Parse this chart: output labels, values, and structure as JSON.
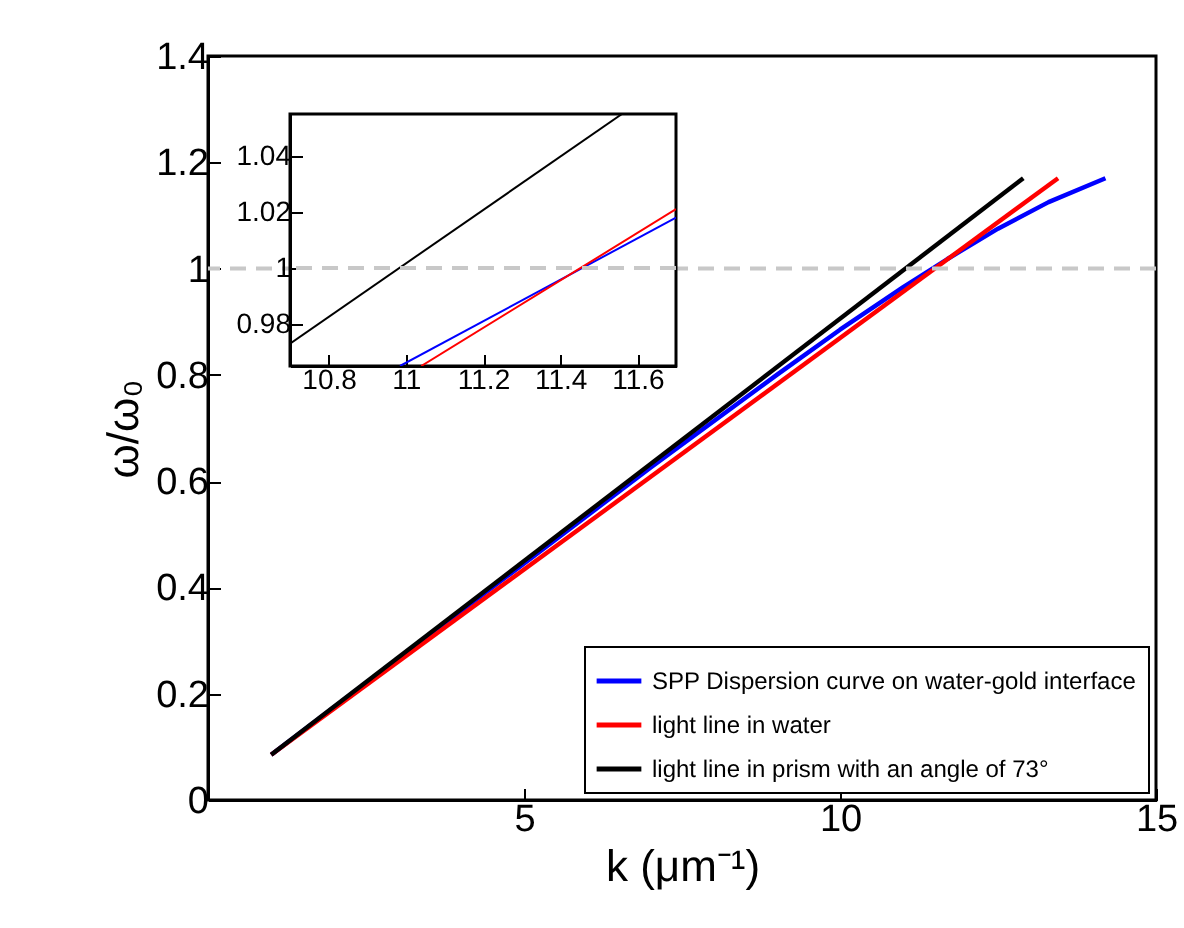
{
  "chart_data": [
    {
      "type": "line",
      "xlabel": "k (μm⁻¹)",
      "ylabel": "ω/ω₀",
      "xlim": [
        0,
        15
      ],
      "ylim": [
        0,
        1.4
      ],
      "xticks": [
        5,
        10,
        15
      ],
      "yticks": [
        0,
        0.2,
        0.4,
        0.6,
        0.8,
        1,
        1.2,
        1.4
      ],
      "legend": "bottom right",
      "ref_lines": [
        {
          "axis": "y",
          "value": 1,
          "color": "#c8c8c8",
          "line_style": "dashed"
        }
      ],
      "series": [
        {
          "name": "SPP Dispersion curve on water-gold interface",
          "color": "#0000ff",
          "x": [
            1,
            4,
            7,
            9,
            10,
            11,
            11.7,
            12.5,
            13.3,
            14.2
          ],
          "values": [
            0.085,
            0.355,
            0.625,
            0.8,
            0.885,
            0.965,
            1.018,
            1.075,
            1.125,
            1.17
          ]
        },
        {
          "name": "light line in water",
          "color": "#ff0000",
          "x": [
            1,
            13.45
          ],
          "values": [
            0.085,
            1.17
          ]
        },
        {
          "name": "light line in prism with an angle of 73°",
          "color": "#000000",
          "x": [
            1,
            12.9
          ],
          "values": [
            0.085,
            1.17
          ]
        }
      ]
    },
    {
      "type": "line",
      "xlim": [
        10.7,
        11.7
      ],
      "ylim": [
        0.965,
        1.055
      ],
      "xticks": [
        10.8,
        11,
        11.2,
        11.4,
        11.6
      ],
      "yticks": [
        0.98,
        1,
        1.02,
        1.04
      ],
      "ref_lines": [
        {
          "axis": "y",
          "value": 1,
          "color": "#c8c8c8",
          "line_style": "dashed"
        }
      ],
      "series": [
        {
          "color": "#0000ff",
          "x": [
            10.985,
            11.7
          ],
          "values": [
            0.965,
            1.018
          ]
        },
        {
          "color": "#ff0000",
          "x": [
            11.04,
            11.7
          ],
          "values": [
            0.965,
            1.021
          ]
        },
        {
          "color": "#000000",
          "x": [
            10.7,
            11.56
          ],
          "values": [
            0.973,
            1.055
          ]
        }
      ]
    }
  ]
}
